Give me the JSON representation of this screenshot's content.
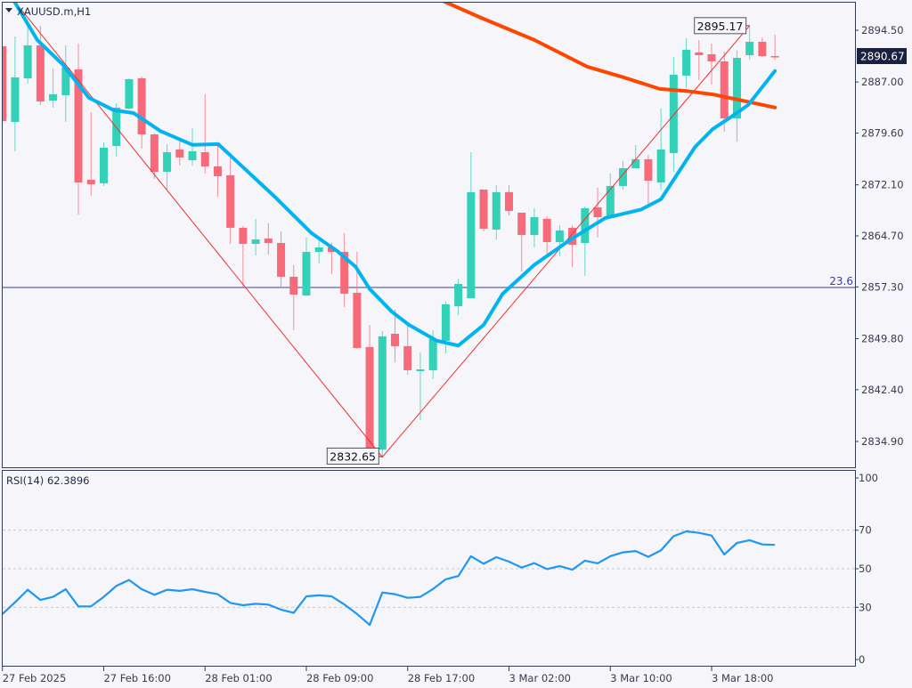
{
  "header": {
    "symbol_title": "XAUUSD.m,H1",
    "menu_icon": "triangle-down-icon"
  },
  "colors": {
    "background": "#f5f5fa",
    "bull": "#33d1b7",
    "bear": "#f76a7a",
    "ma_fast": "#00b4f0",
    "ma_slow": "#ff4500",
    "zigzag": "#f03030",
    "fib_line": "#7b7bc4",
    "rsi_line": "#2196f3",
    "current_price_bg": "#1c2040",
    "border": "#333b55"
  },
  "chart_data": [
    {
      "type": "candlestick",
      "title": "XAUUSD.m,H1",
      "ylim": [
        2832.0,
        2898.9
      ],
      "y_ticks": [
        "2894.50",
        "2887.00",
        "2879.60",
        "2872.10",
        "2864.70",
        "2857.30",
        "2849.80",
        "2842.40",
        "2834.90"
      ],
      "x_tick_labels": [
        "27 Feb 2025",
        "27 Feb 16:00",
        "28 Feb 01:00",
        "28 Feb 09:00",
        "28 Feb 17:00",
        "3 Mar 02:00",
        "3 Mar 10:00",
        "3 Mar 18:00"
      ],
      "x_tick_candle_step": 8,
      "current_price": "2890.67",
      "candles_ohlc": [
        [
          2892.18,
          2892.3,
          2880.7,
          2881.35
        ],
        [
          2881.22,
          2893.6,
          2876.96,
          2887.67
        ],
        [
          2887.54,
          2895.28,
          2886.76,
          2892.31
        ],
        [
          2892.31,
          2895.15,
          2883.67,
          2884.18
        ],
        [
          2884.31,
          2888.96,
          2883.28,
          2885.22
        ],
        [
          2885.09,
          2892.31,
          2881.22,
          2889.09
        ],
        [
          2888.83,
          2892.57,
          2867.8,
          2872.44
        ],
        [
          2872.83,
          2882.64,
          2870.51,
          2872.19
        ],
        [
          2872.32,
          2878.25,
          2871.93,
          2877.48
        ],
        [
          2877.73,
          2883.93,
          2876.19,
          2883.28
        ],
        [
          2883.15,
          2887.54,
          2883.02,
          2887.41
        ],
        [
          2887.54,
          2887.8,
          2877.35,
          2879.41
        ],
        [
          2879.41,
          2879.54,
          2872.96,
          2873.99
        ],
        [
          2873.99,
          2877.99,
          2871.41,
          2876.83
        ],
        [
          2877.22,
          2878.51,
          2874.9,
          2876.06
        ],
        [
          2875.67,
          2880.31,
          2874.9,
          2876.96
        ],
        [
          2876.83,
          2885.22,
          2873.73,
          2874.77
        ],
        [
          2874.77,
          2877.99,
          2870.38,
          2873.35
        ],
        [
          2873.48,
          2876.31,
          2863.54,
          2865.87
        ],
        [
          2865.87,
          2866.12,
          2857.22,
          2863.54
        ],
        [
          2863.54,
          2867.16,
          2861.87,
          2864.19
        ],
        [
          2864.32,
          2866.51,
          2862.0,
          2863.67
        ],
        [
          2863.67,
          2865.35,
          2857.35,
          2858.77
        ],
        [
          2858.77,
          2860.45,
          2851.03,
          2856.19
        ],
        [
          2856.06,
          2864.45,
          2855.93,
          2862.38
        ],
        [
          2862.38,
          2864.45,
          2860.71,
          2863.03
        ],
        [
          2863.03,
          2863.67,
          2859.16,
          2862.38
        ],
        [
          2862.38,
          2865.09,
          2854.38,
          2856.32
        ],
        [
          2856.45,
          2862.38,
          2848.32,
          2848.45
        ],
        [
          2848.58,
          2851.8,
          2833.49,
          2834.0
        ],
        [
          2833.74,
          2850.9,
          2832.65,
          2850.13
        ],
        [
          2850.51,
          2854.0,
          2846.39,
          2848.71
        ],
        [
          2848.71,
          2851.68,
          2844.58,
          2845.23
        ],
        [
          2845.1,
          2847.81,
          2838.0,
          2845.35
        ],
        [
          2845.23,
          2851.03,
          2843.94,
          2849.74
        ],
        [
          2849.48,
          2855.16,
          2847.68,
          2854.77
        ],
        [
          2854.51,
          2858.51,
          2853.22,
          2857.74
        ],
        [
          2855.67,
          2876.83,
          2855.67,
          2871.03
        ],
        [
          2871.41,
          2871.41,
          2865.35,
          2865.74
        ],
        [
          2865.61,
          2872.06,
          2864.19,
          2871.03
        ],
        [
          2871.03,
          2872.06,
          2867.67,
          2868.32
        ],
        [
          2868.06,
          2868.06,
          2859.54,
          2864.83
        ],
        [
          2864.83,
          2868.7,
          2863.03,
          2867.41
        ],
        [
          2867.16,
          2867.54,
          2861.48,
          2863.8
        ],
        [
          2863.8,
          2866.25,
          2861.74,
          2865.48
        ],
        [
          2865.87,
          2866.25,
          2860.19,
          2863.41
        ],
        [
          2863.67,
          2868.96,
          2858.9,
          2868.7
        ],
        [
          2868.83,
          2871.67,
          2864.45,
          2867.41
        ],
        [
          2867.28,
          2873.73,
          2867.28,
          2871.93
        ],
        [
          2871.93,
          2875.54,
          2871.41,
          2874.51
        ],
        [
          2874.51,
          2877.86,
          2874.51,
          2875.8
        ],
        [
          2875.8,
          2876.44,
          2868.96,
          2872.7
        ],
        [
          2872.44,
          2883.15,
          2871.41,
          2877.22
        ],
        [
          2876.7,
          2890.63,
          2873.99,
          2888.05
        ],
        [
          2887.92,
          2893.34,
          2886.12,
          2891.67
        ],
        [
          2891.28,
          2893.08,
          2887.28,
          2890.89
        ],
        [
          2891.02,
          2892.57,
          2886.63,
          2889.99
        ],
        [
          2889.99,
          2891.41,
          2879.8,
          2881.73
        ],
        [
          2881.73,
          2891.54,
          2878.38,
          2890.5
        ],
        [
          2890.89,
          2895.17,
          2890.25,
          2892.83
        ],
        [
          2892.83,
          2893.47,
          2890.63,
          2890.76
        ],
        [
          2890.76,
          2893.86,
          2890.25,
          2890.67
        ]
      ],
      "ma_fast_points": [
        [
          0.87,
          2898.9
        ],
        [
          2.76,
          2893.08
        ],
        [
          4.73,
          2889.6
        ],
        [
          6.84,
          2884.7
        ],
        [
          8.81,
          2882.9
        ],
        [
          10.36,
          2882.5
        ],
        [
          12.47,
          2879.9
        ],
        [
          15.0,
          2877.9
        ],
        [
          17.04,
          2878.0
        ],
        [
          18.8,
          2875.0
        ],
        [
          21.6,
          2870.2
        ],
        [
          24.4,
          2865.1
        ],
        [
          26.5,
          2862.4
        ],
        [
          27.9,
          2860.2
        ],
        [
          29.0,
          2857.0
        ],
        [
          30.75,
          2853.7
        ],
        [
          32.1,
          2851.8
        ],
        [
          34.3,
          2849.5
        ],
        [
          36.0,
          2848.8
        ],
        [
          38.0,
          2851.8
        ],
        [
          39.5,
          2856.3
        ],
        [
          42.0,
          2860.5
        ],
        [
          44.8,
          2864.1
        ],
        [
          47.6,
          2867.3
        ],
        [
          50.4,
          2868.5
        ],
        [
          52.0,
          2870.0
        ],
        [
          54.7,
          2877.6
        ],
        [
          56.1,
          2880.2
        ],
        [
          57.5,
          2881.9
        ],
        [
          58.9,
          2883.7
        ],
        [
          61.0,
          2888.6
        ]
      ],
      "ma_slow_points": [
        [
          34.6,
          2898.9
        ],
        [
          37.8,
          2896.3
        ],
        [
          42.0,
          2893.1
        ],
        [
          46.2,
          2889.2
        ],
        [
          49.0,
          2887.7
        ],
        [
          51.9,
          2886.0
        ],
        [
          54.0,
          2885.7
        ],
        [
          56.1,
          2885.2
        ],
        [
          58.2,
          2884.4
        ],
        [
          61.0,
          2883.3
        ]
      ],
      "zigzag_points": [
        [
          0.87,
          2898.9
        ],
        [
          30,
          2832.65
        ],
        [
          59,
          2895.17
        ]
      ],
      "zigzag_labels": [
        {
          "text": "2832.65",
          "candle": 30,
          "price": 2832.65
        },
        {
          "text": "2895.17",
          "candle": 59,
          "price": 2895.17
        }
      ],
      "fib_level": {
        "label": "23.6",
        "price": 2857.22
      }
    },
    {
      "type": "line",
      "title": "RSI(14) 62.3896",
      "ylim": [
        0,
        100
      ],
      "y_ticks": [
        "100",
        "70",
        "50",
        "30",
        "0"
      ],
      "levels": [
        70,
        50,
        30
      ],
      "values": [
        26.5,
        32.6,
        39.1,
        33.8,
        35.4,
        39.4,
        30.5,
        30.5,
        35.4,
        41.1,
        44.2,
        39.4,
        36.5,
        39.1,
        38.5,
        39.4,
        38,
        36.8,
        32.3,
        31.1,
        31.8,
        31.4,
        28.8,
        27.1,
        35.7,
        36.2,
        35.7,
        31.5,
        26.5,
        20.9,
        37.7,
        36.8,
        34.9,
        35.4,
        39.5,
        44.5,
        46.2,
        56.5,
        52.6,
        56,
        53.7,
        50.6,
        52.9,
        49.8,
        51.4,
        49.5,
        54.2,
        52.8,
        56.5,
        58.5,
        59.2,
        56.2,
        59.5,
        66.9,
        69.4,
        68.6,
        67.2,
        57.4,
        63.4,
        64.8,
        62.6,
        62.39
      ]
    }
  ]
}
